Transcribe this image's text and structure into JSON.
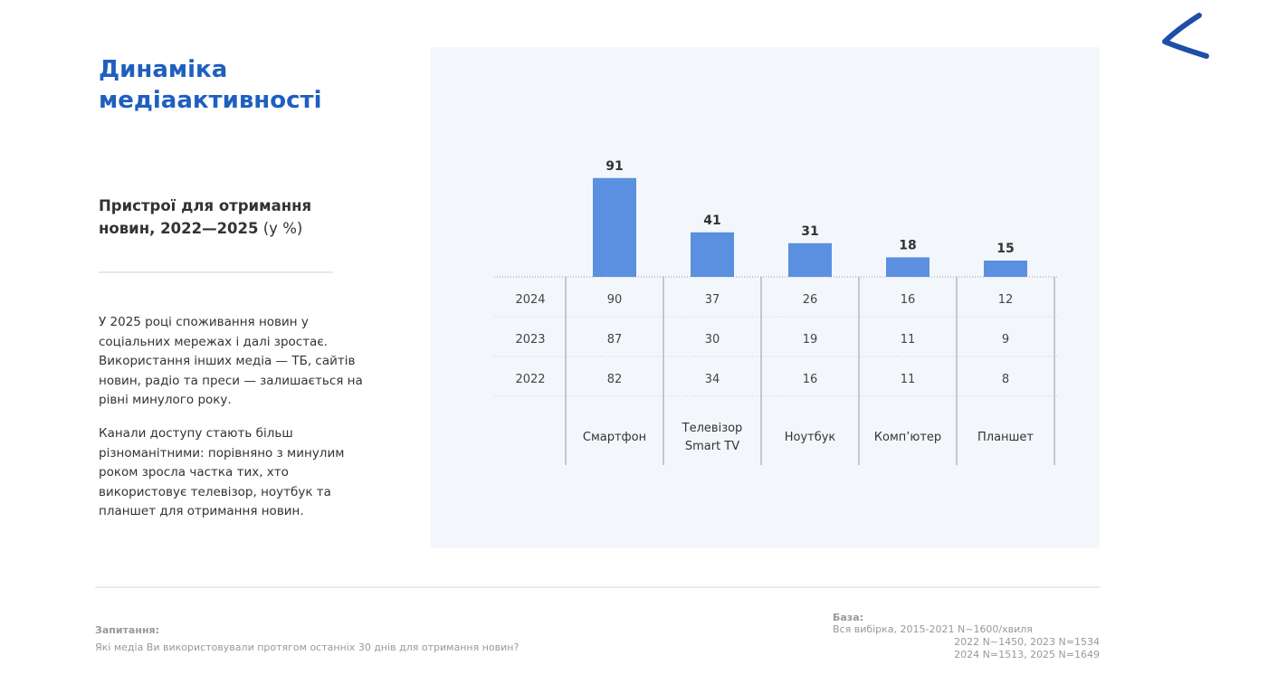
{
  "page": {
    "title": "Динаміка медіаактивності",
    "subtitle_bold": "Пристрої для отримання новин, 2022—2025",
    "subtitle_unit": "(у %)",
    "paragraphs": [
      "У 2025 році споживання новин у соціальних мережах і далі зростає. Використання інших медіа — ТБ, сайтів новин, радіо та преси — залишається на рівні минулого року.",
      "Канали доступу стають більш різноманітними: порівняно з минулим роком зросла частка тих, хто використовує телевізор, ноутбук та планшет для отримання новин."
    ],
    "logo_icon": "brand-chevron-logo"
  },
  "chart_data": {
    "type": "bar",
    "categories": [
      "Смартфон",
      "Телевізор Smart TV",
      "Ноутбук",
      "Комп'ютер",
      "Планшет"
    ],
    "category_lines": [
      [
        "Смартфон"
      ],
      [
        "Телевізор",
        "Smart TV"
      ],
      [
        "Ноутбук"
      ],
      [
        "Комп’ютер"
      ],
      [
        "Планшет"
      ]
    ],
    "series": [
      {
        "name": "2025",
        "values": [
          91,
          41,
          31,
          18,
          15
        ]
      }
    ],
    "table_rows": [
      {
        "year": "2024",
        "values": [
          90,
          37,
          26,
          16,
          12
        ]
      },
      {
        "year": "2023",
        "values": [
          87,
          30,
          19,
          11,
          9
        ]
      },
      {
        "year": "2022",
        "values": [
          82,
          34,
          16,
          11,
          8
        ]
      }
    ],
    "ylim": [
      0,
      100
    ],
    "bar_color": "#5b8fe0",
    "grid": false
  },
  "footer": {
    "question_label": "Запитання:",
    "question_text": "Які медіа Ви використовували протягом останніх 30 днів для отримання новин?",
    "base_label": "База:",
    "base_lines": [
      "Вся вибірка, 2015-2021   N~1600/хвиля",
      "2022  N~1450, 2023  N=1534",
      "2024  N=1513, 2025  N=1649"
    ]
  }
}
